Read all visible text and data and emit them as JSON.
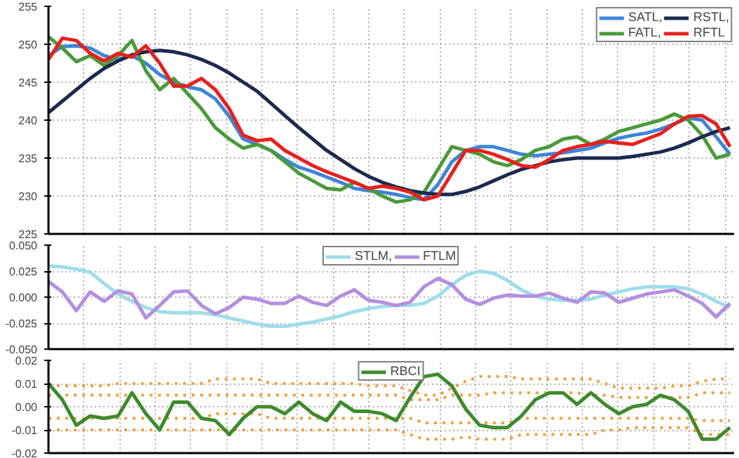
{
  "chart_data": [
    {
      "type": "line",
      "categories": [
        null,
        null,
        null,
        null,
        null,
        null,
        null,
        null,
        null,
        null,
        null,
        null,
        null,
        null,
        null,
        null,
        null,
        null,
        null,
        null,
        null,
        null,
        null,
        null,
        null,
        null,
        null,
        null,
        null,
        null,
        null,
        null,
        null,
        null,
        null,
        null,
        null,
        null,
        null,
        null,
        null,
        null,
        null,
        null,
        null,
        null,
        null,
        null,
        null,
        null
      ],
      "ylim": [
        225,
        255
      ],
      "yticks": [
        225,
        230,
        235,
        240,
        245,
        250,
        255
      ],
      "grid": true,
      "legend": "top right",
      "tick_labels": "y",
      "line_style": "solid",
      "series": [
        {
          "name": "SATL,",
          "color": "#3d85d8",
          "values": [
            248.5,
            249.7,
            249.8,
            249.5,
            248.5,
            248,
            248.5,
            247.5,
            246,
            245,
            244.4,
            244,
            242.8,
            240.5,
            237.5,
            236.8,
            236,
            234.8,
            233.8,
            233.2,
            232.5,
            231.8,
            231,
            230.7,
            230.5,
            230.2,
            229.8,
            229.5,
            231.5,
            234.5,
            236,
            236.5,
            236.5,
            236,
            235.5,
            235.3,
            235.5,
            235.7,
            236,
            236.3,
            237,
            237.6,
            238,
            238.3,
            238.8,
            239.5,
            240.3,
            240,
            237.8,
            235.5
          ]
        },
        {
          "name": "FATL,",
          "color": "#4a9a3a",
          "values": [
            251,
            249.5,
            247.7,
            248.5,
            247.2,
            248.5,
            250.5,
            246.5,
            244,
            245.5,
            243.5,
            241.5,
            239,
            237.5,
            236.3,
            236.8,
            236,
            234.5,
            233,
            232,
            231,
            230.8,
            231.8,
            231,
            230,
            229.2,
            229.5,
            230.5,
            233.5,
            236.5,
            236,
            235.5,
            234.5,
            234,
            234.8,
            236,
            236.5,
            237.5,
            237.8,
            236.8,
            237.5,
            238.5,
            239,
            239.5,
            240,
            240.8,
            240,
            238,
            235,
            235.5
          ]
        },
        {
          "name": "RSTL,",
          "color": "#1b2a4e",
          "values": [
            241,
            242.5,
            244,
            245.5,
            246.8,
            247.8,
            248.6,
            249,
            249.2,
            249,
            248.6,
            248,
            247.2,
            246.2,
            245,
            243.8,
            242.2,
            240.6,
            239,
            237.5,
            236,
            234.8,
            233.6,
            232.6,
            231.8,
            231.2,
            230.7,
            230.4,
            230.2,
            230.2,
            230.6,
            231.2,
            232,
            232.8,
            233.5,
            234,
            234.5,
            234.8,
            235,
            235,
            235,
            235,
            235.2,
            235.5,
            235.8,
            236.3,
            237,
            237.8,
            238.5,
            239
          ]
        },
        {
          "name": "RFTL",
          "color": "#e8201c",
          "values": [
            248,
            250.8,
            250.5,
            248.8,
            247.8,
            248.8,
            248.3,
            249.8,
            247.5,
            244.5,
            244.5,
            245.5,
            244,
            241.5,
            238,
            237.3,
            237.5,
            236,
            235,
            234,
            233.2,
            232.5,
            231.8,
            231,
            231.3,
            231,
            230.5,
            229.5,
            230,
            233,
            236,
            236,
            235.5,
            234.8,
            234,
            233.8,
            234.8,
            236,
            236.5,
            236.8,
            237.2,
            237,
            236.8,
            237.5,
            238.2,
            239.5,
            240.5,
            240.6,
            239.5,
            236.5
          ]
        }
      ]
    },
    {
      "type": "line",
      "categories": [
        null,
        null,
        null,
        null,
        null,
        null,
        null,
        null,
        null,
        null,
        null,
        null,
        null,
        null,
        null,
        null,
        null,
        null,
        null,
        null,
        null,
        null,
        null,
        null,
        null,
        null,
        null,
        null,
        null,
        null,
        null,
        null,
        null,
        null,
        null,
        null,
        null,
        null,
        null,
        null,
        null,
        null,
        null,
        null,
        null,
        null,
        null,
        null,
        null,
        null
      ],
      "ylim": [
        -0.05,
        0.05
      ],
      "yticks": [
        {
          "value": -0.05,
          "label": "-0.050"
        },
        {
          "value": -0.025,
          "label": "-0.025"
        },
        {
          "value": 0,
          "label": "0.000"
        },
        {
          "value": 0.025,
          "label": "0.025"
        },
        {
          "value": 0.05,
          "label": "0.050"
        }
      ],
      "grid": true,
      "legend": "top",
      "tick_labels": "y",
      "line_style": "solid",
      "series": [
        {
          "name": "STLM,",
          "color": "#9fdde8",
          "values": [
            0.03,
            0.029,
            0.027,
            0.024,
            0.013,
            0.003,
            -0.004,
            -0.01,
            -0.014,
            -0.015,
            -0.015,
            -0.015,
            -0.017,
            -0.02,
            -0.023,
            -0.026,
            -0.028,
            -0.028,
            -0.026,
            -0.024,
            -0.021,
            -0.018,
            -0.014,
            -0.011,
            -0.009,
            -0.008,
            -0.008,
            -0.006,
            0.001,
            0.012,
            0.021,
            0.025,
            0.023,
            0.016,
            0.007,
            0.001,
            -0.002,
            -0.003,
            -0.003,
            -0.002,
            0.002,
            0.005,
            0.008,
            0.01,
            0.01,
            0.01,
            0.008,
            0.003,
            -0.004,
            -0.01
          ]
        },
        {
          "name": "FTLM",
          "color": "#b48fe0",
          "values": [
            0.015,
            0.005,
            -0.013,
            0.005,
            -0.004,
            0.006,
            0.003,
            -0.02,
            -0.008,
            0.005,
            0.006,
            -0.008,
            -0.016,
            -0.01,
            0.0,
            -0.002,
            -0.006,
            -0.006,
            0.001,
            -0.005,
            -0.008,
            0.001,
            0.007,
            -0.003,
            -0.005,
            -0.008,
            -0.005,
            0.01,
            0.018,
            0.012,
            -0.002,
            -0.007,
            -0.001,
            0.002,
            0.001,
            0.001,
            0.004,
            -0.001,
            -0.005,
            0.005,
            0.004,
            -0.005,
            -0.001,
            0.003,
            0.005,
            0.007,
            0.001,
            -0.006,
            -0.019,
            -0.006
          ]
        }
      ]
    },
    {
      "type": "line",
      "categories": [
        null,
        null,
        null,
        null,
        null,
        null,
        null,
        null,
        null,
        null,
        null,
        null,
        null,
        null,
        null,
        null,
        null,
        null,
        null,
        null,
        null,
        null,
        null,
        null,
        null,
        null,
        null,
        null,
        null,
        null,
        null,
        null,
        null,
        null,
        null,
        null,
        null,
        null,
        null,
        null,
        null,
        null,
        null,
        null,
        null,
        null,
        null,
        null,
        null,
        null
      ],
      "ylim": [
        -0.02,
        0.02
      ],
      "yticks": [
        {
          "value": -0.02,
          "label": "-0.02"
        },
        {
          "value": -0.01,
          "label": "-0.01"
        },
        {
          "value": 0,
          "label": "0.00"
        },
        {
          "value": 0.01,
          "label": "0.01"
        },
        {
          "value": 0.02,
          "label": "0.02"
        }
      ],
      "grid": true,
      "legend": "top",
      "tick_labels": "y",
      "line_style": "solid",
      "series": [
        {
          "color": "#f0a040",
          "line_style": "dotted",
          "values": [
            0.009,
            0.009,
            0.009,
            0.009,
            0.009,
            0.01,
            0.01,
            0.01,
            0.01,
            0.01,
            0.01,
            0.01,
            0.012,
            0.012,
            0.012,
            0.012,
            0.01,
            0.01,
            0.01,
            0.01,
            0.01,
            0.01,
            0.01,
            0.009,
            0.009,
            0.009,
            0.007,
            0.005,
            0.005,
            0.008,
            0.011,
            0.013,
            0.013,
            0.013,
            0.012,
            0.012,
            0.012,
            0.012,
            0.012,
            0.012,
            0.01,
            0.008,
            0.008,
            0.008,
            0.008,
            0.009,
            0.009,
            0.011,
            0.012,
            0.012
          ]
        },
        {
          "color": "#f0a040",
          "line_style": "dotted",
          "values": [
            0.005,
            0.005,
            0.005,
            0.005,
            0.005,
            0.005,
            0.005,
            0.005,
            0.005,
            0.005,
            0.005,
            0.005,
            0.005,
            0.005,
            0.005,
            0.005,
            0.005,
            0.005,
            0.005,
            0.005,
            0.005,
            0.005,
            0.005,
            0.005,
            0.005,
            0.005,
            0.003,
            0.003,
            0.003,
            0.005,
            0.005,
            0.005,
            0.006,
            0.006,
            0.006,
            0.006,
            0.006,
            0.006,
            0.006,
            0.005,
            0.005,
            0.004,
            0.004,
            0.004,
            0.004,
            0.004,
            0.004,
            0.006,
            0.006,
            0.006
          ]
        },
        {
          "color": "#f0a040",
          "line_style": "dotted",
          "values": [
            -0.005,
            -0.005,
            -0.005,
            -0.005,
            -0.005,
            -0.005,
            -0.005,
            -0.005,
            -0.005,
            -0.005,
            -0.005,
            -0.005,
            -0.003,
            -0.003,
            -0.003,
            -0.003,
            -0.005,
            -0.005,
            -0.005,
            -0.005,
            -0.005,
            -0.005,
            -0.005,
            -0.005,
            -0.005,
            -0.005,
            -0.005,
            -0.007,
            -0.007,
            -0.007,
            -0.007,
            -0.007,
            -0.007,
            -0.007,
            -0.005,
            -0.005,
            -0.005,
            -0.005,
            -0.005,
            -0.005,
            -0.005,
            -0.005,
            -0.005,
            -0.005,
            -0.005,
            -0.005,
            -0.005,
            -0.006,
            -0.006,
            -0.006
          ]
        },
        {
          "color": "#f0a040",
          "line_style": "dotted",
          "values": [
            -0.01,
            -0.01,
            -0.01,
            -0.01,
            -0.01,
            -0.01,
            -0.01,
            -0.01,
            -0.01,
            -0.01,
            -0.01,
            -0.01,
            -0.01,
            -0.01,
            -0.01,
            -0.01,
            -0.01,
            -0.01,
            -0.01,
            -0.01,
            -0.01,
            -0.01,
            -0.01,
            -0.01,
            -0.01,
            -0.01,
            -0.012,
            -0.014,
            -0.014,
            -0.014,
            -0.013,
            -0.014,
            -0.014,
            -0.014,
            -0.012,
            -0.012,
            -0.012,
            -0.012,
            -0.012,
            -0.012,
            -0.01,
            -0.01,
            -0.009,
            -0.009,
            -0.009,
            -0.009,
            -0.009,
            -0.012,
            -0.012,
            -0.012
          ]
        },
        {
          "name": "RBCI",
          "color": "#3e8a2e",
          "values": [
            0.01,
            0.003,
            -0.008,
            -0.004,
            -0.005,
            -0.004,
            0.006,
            -0.003,
            -0.01,
            0.002,
            0.002,
            -0.005,
            -0.006,
            -0.012,
            -0.005,
            0.0,
            0.0,
            -0.003,
            0.002,
            -0.003,
            -0.006,
            0.002,
            -0.002,
            -0.002,
            -0.003,
            -0.006,
            0.004,
            0.013,
            0.014,
            0.009,
            -0.001,
            -0.008,
            -0.009,
            -0.009,
            -0.004,
            0.003,
            0.006,
            0.006,
            0.001,
            0.006,
            0.001,
            -0.003,
            0.0,
            0.001,
            0.005,
            0.003,
            -0.002,
            -0.014,
            -0.014,
            -0.009
          ]
        }
      ]
    }
  ]
}
